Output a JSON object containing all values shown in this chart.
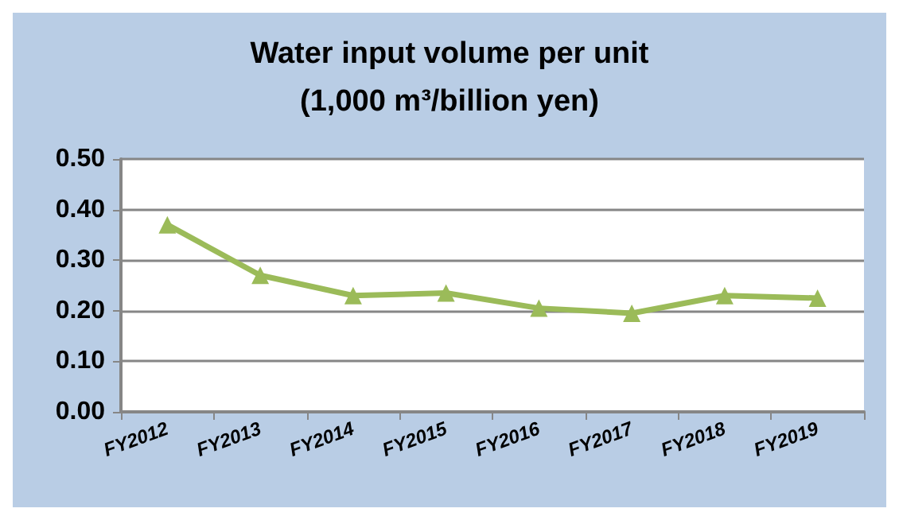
{
  "chart_data": {
    "type": "line",
    "title": "Water input volume per unit\n(1,000 m³/billion yen)",
    "categories": [
      "FY2012",
      "FY2013",
      "FY2014",
      "FY2015",
      "FY2016",
      "FY2017",
      "FY2018",
      "FY2019"
    ],
    "series": [
      {
        "color": "#9bbb59",
        "values": [
          0.37,
          0.27,
          0.23,
          0.235,
          0.205,
          0.195,
          0.23,
          0.225
        ]
      }
    ],
    "ylim": [
      0,
      0.5
    ],
    "yticks": [
      {
        "value": 0,
        "label": "0.00"
      },
      {
        "value": 0.1,
        "label": "0.10"
      },
      {
        "value": 0.2,
        "label": "0.20"
      },
      {
        "value": 0.3,
        "label": "0.30"
      },
      {
        "value": 0.4,
        "label": "0.40"
      },
      {
        "value": 0.5,
        "label": "0.50"
      }
    ],
    "grid": "y",
    "marker": "triangle",
    "line_style": "solid"
  }
}
